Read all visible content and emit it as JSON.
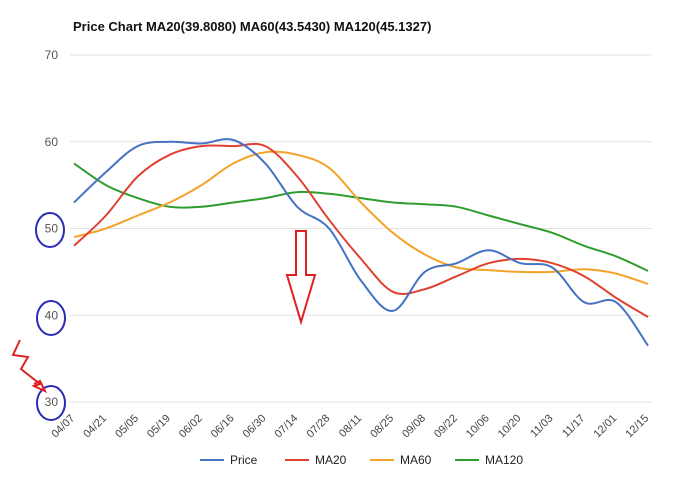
{
  "chart_data": {
    "type": "line",
    "title": "Price Chart MA20(39.8080) MA60(43.5430) MA120(45.1327)",
    "ylim": [
      30,
      70
    ],
    "yticks": [
      30,
      40,
      50,
      60,
      70
    ],
    "x": [
      "04/07",
      "04/21",
      "05/05",
      "05/19",
      "06/02",
      "06/16",
      "06/30",
      "07/14",
      "07/28",
      "08/11",
      "08/25",
      "09/08",
      "09/22",
      "10/06",
      "10/20",
      "11/03",
      "11/17",
      "12/01",
      "12/15"
    ],
    "grid": true,
    "legend_position": "bottom",
    "series": [
      {
        "name": "Price",
        "color": "#4472c4",
        "values": [
          53.0,
          56.5,
          59.5,
          60.0,
          59.8,
          60.2,
          57.5,
          52.5,
          50.0,
          44.0,
          40.5,
          45.0,
          46.0,
          47.5,
          46.0,
          45.5,
          41.5,
          41.5,
          36.5
        ]
      },
      {
        "name": "MA20",
        "color": "#e0412f",
        "values": [
          48.0,
          51.5,
          56.0,
          58.5,
          59.5,
          59.5,
          59.5,
          56.0,
          51.0,
          46.5,
          42.7,
          43.0,
          44.5,
          46.0,
          46.5,
          46.0,
          44.5,
          42.0,
          39.8
        ]
      },
      {
        "name": "MA60",
        "color": "#f4a329",
        "values": [
          49.0,
          50.0,
          51.5,
          53.0,
          55.0,
          57.5,
          58.8,
          58.5,
          57.0,
          53.0,
          49.5,
          47.0,
          45.5,
          45.2,
          45.0,
          45.0,
          45.3,
          44.8,
          43.6
        ]
      },
      {
        "name": "MA120",
        "color": "#2e9d2e",
        "values": [
          57.5,
          55.0,
          53.5,
          52.5,
          52.5,
          53.0,
          53.5,
          54.2,
          54.0,
          53.5,
          53.0,
          52.8,
          52.5,
          51.5,
          50.5,
          49.5,
          48.0,
          46.8,
          45.1
        ]
      }
    ]
  }
}
